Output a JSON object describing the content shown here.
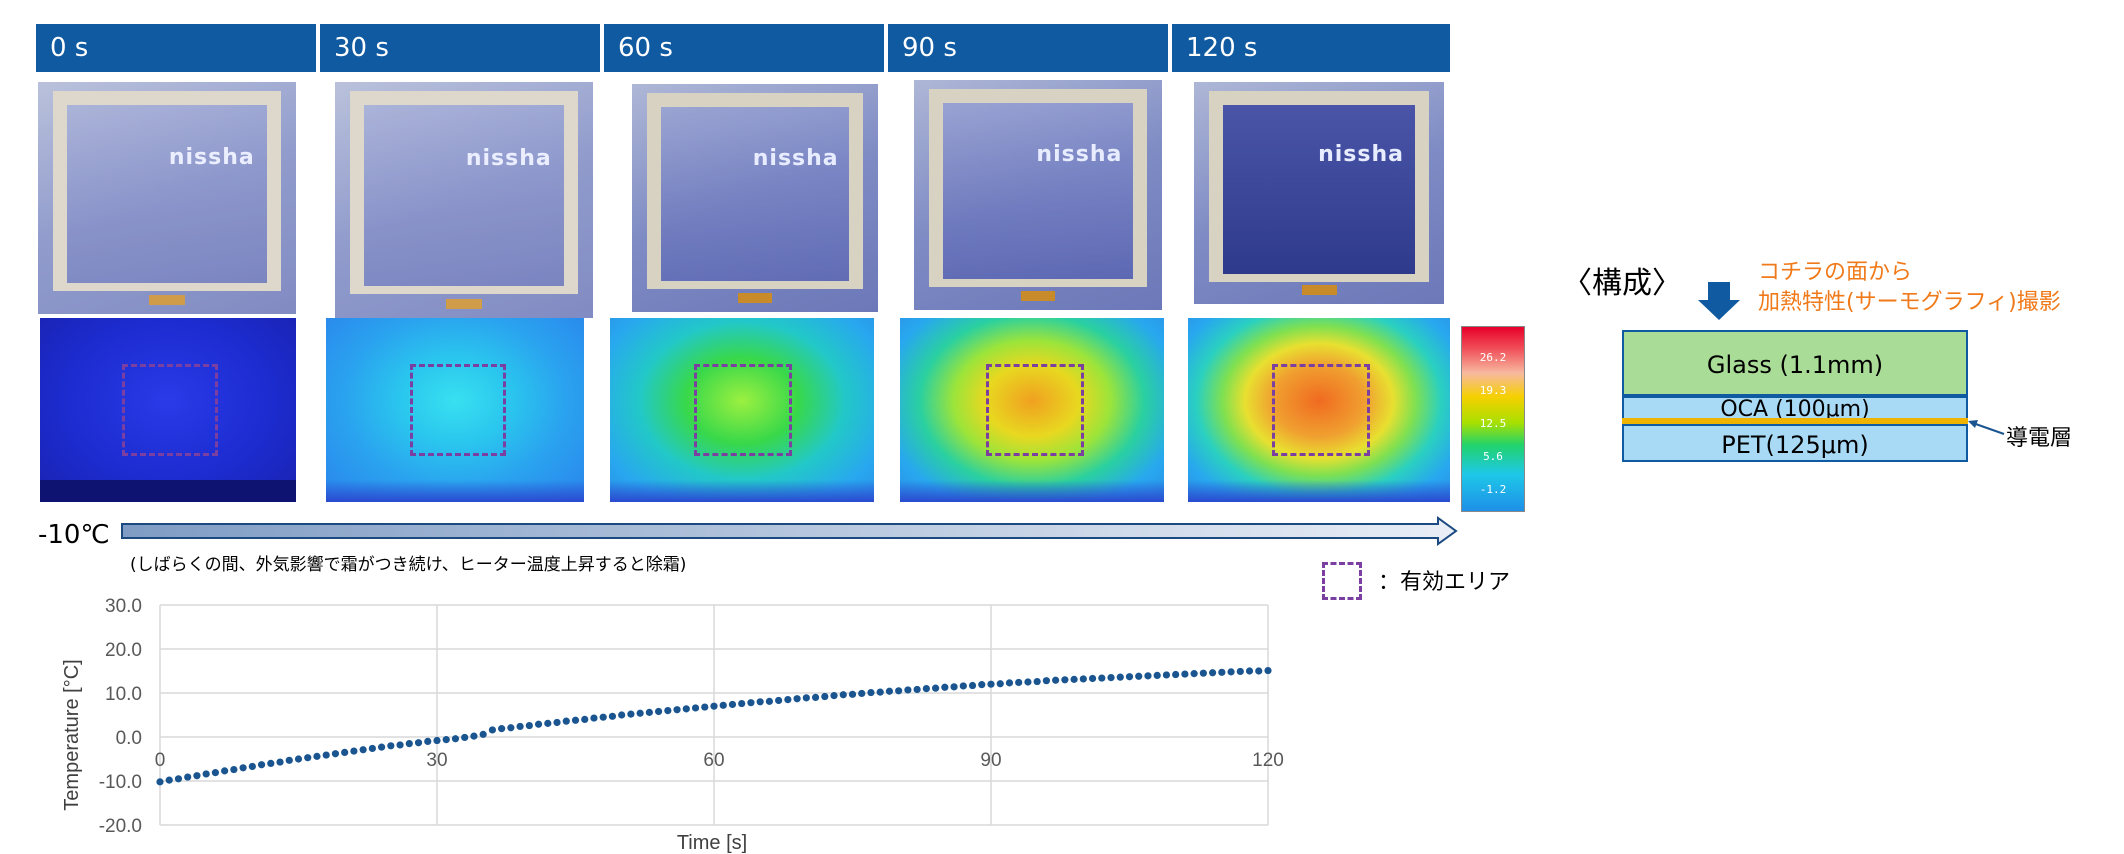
{
  "time_labels": [
    "0 s",
    "30 s",
    "60 s",
    "90 s",
    "120 s"
  ],
  "photo_logo": "nissha",
  "colorbar": {
    "ticks": [
      "26.2",
      "19.3",
      "12.5",
      "5.6",
      "-1.2"
    ]
  },
  "start_temperature": "-10℃",
  "note": "(しばらくの間、外気影響で霜がつき続け、ヒーター温度上昇すると除霜)",
  "legend": {
    "effective_area": "：有効エリア"
  },
  "structure": {
    "title": "〈構成〉",
    "note_line1": "コチラの面から",
    "note_line2": "加熱特性(サーモグラフィ)撮影",
    "layers": [
      "Glass (1.1mm)",
      "OCA (100μm)",
      "PET(125μm)"
    ],
    "conductive_label": "導電層"
  },
  "colors": {
    "header": "#0f5aa0",
    "series": "#1a5590",
    "accent": "#f07a1a",
    "glass": "#a9dc96",
    "oca_pet": "#a8daf6",
    "conductive": "#f0b400",
    "area": "#7a3fa0"
  },
  "chart_data": {
    "type": "scatter",
    "xlabel": "Time [s]",
    "ylabel": "Temperature [°C]",
    "xlim": [
      0,
      120
    ],
    "ylim": [
      -20,
      30
    ],
    "xticks": [
      0,
      30,
      60,
      90,
      120
    ],
    "yticks": [
      "30.0",
      "20.0",
      "10.0",
      "0.0",
      "-10.0",
      "-20.0"
    ],
    "grid": true,
    "series": [
      {
        "x": [
          0,
          1,
          2,
          3,
          4,
          5,
          6,
          7,
          8,
          9,
          10,
          11,
          12,
          13,
          14,
          15,
          16,
          17,
          18,
          19,
          20,
          21,
          22,
          23,
          24,
          25,
          26,
          27,
          28,
          29,
          30,
          31,
          32,
          33,
          34,
          35,
          36,
          37,
          38,
          39,
          40,
          41,
          42,
          43,
          44,
          45,
          46,
          47,
          48,
          49,
          50,
          51,
          52,
          53,
          54,
          55,
          56,
          57,
          58,
          59,
          60,
          61,
          62,
          63,
          64,
          65,
          66,
          67,
          68,
          69,
          70,
          71,
          72,
          73,
          74,
          75,
          76,
          77,
          78,
          79,
          80,
          81,
          82,
          83,
          84,
          85,
          86,
          87,
          88,
          89,
          90,
          91,
          92,
          93,
          94,
          95,
          96,
          97,
          98,
          99,
          100,
          101,
          102,
          103,
          104,
          105,
          106,
          107,
          108,
          109,
          110,
          111,
          112,
          113,
          114,
          115,
          116,
          117,
          118,
          119,
          120
        ],
        "y": [
          -10.2,
          -9.8,
          -9.5,
          -9.1,
          -8.8,
          -8.4,
          -8.1,
          -7.7,
          -7.4,
          -7.0,
          -6.7,
          -6.3,
          -6.0,
          -5.7,
          -5.3,
          -5.0,
          -4.7,
          -4.4,
          -4.1,
          -3.8,
          -3.5,
          -3.2,
          -2.9,
          -2.6,
          -2.3,
          -2.0,
          -1.8,
          -1.5,
          -1.3,
          -1.0,
          -0.8,
          -0.6,
          -0.4,
          -0.1,
          0.2,
          0.6,
          1.6,
          1.9,
          2.1,
          2.4,
          2.6,
          2.9,
          3.1,
          3.3,
          3.6,
          3.8,
          4.0,
          4.3,
          4.5,
          4.7,
          5.0,
          5.2,
          5.4,
          5.6,
          5.8,
          6.0,
          6.2,
          6.4,
          6.6,
          6.8,
          7.0,
          7.2,
          7.4,
          7.6,
          7.8,
          8.0,
          8.1,
          8.3,
          8.5,
          8.7,
          8.9,
          9.0,
          9.2,
          9.4,
          9.6,
          9.7,
          9.9,
          10.1,
          10.2,
          10.4,
          10.5,
          10.7,
          10.8,
          11.0,
          11.1,
          11.3,
          11.4,
          11.6,
          11.7,
          11.9,
          12.0,
          12.1,
          12.3,
          12.4,
          12.5,
          12.6,
          12.8,
          12.9,
          13.0,
          13.1,
          13.2,
          13.3,
          13.4,
          13.5,
          13.6,
          13.7,
          13.8,
          13.9,
          14.0,
          14.1,
          14.2,
          14.3,
          14.4,
          14.5,
          14.6,
          14.7,
          14.8,
          14.9,
          15.0,
          15.0,
          15.1
        ]
      }
    ]
  }
}
